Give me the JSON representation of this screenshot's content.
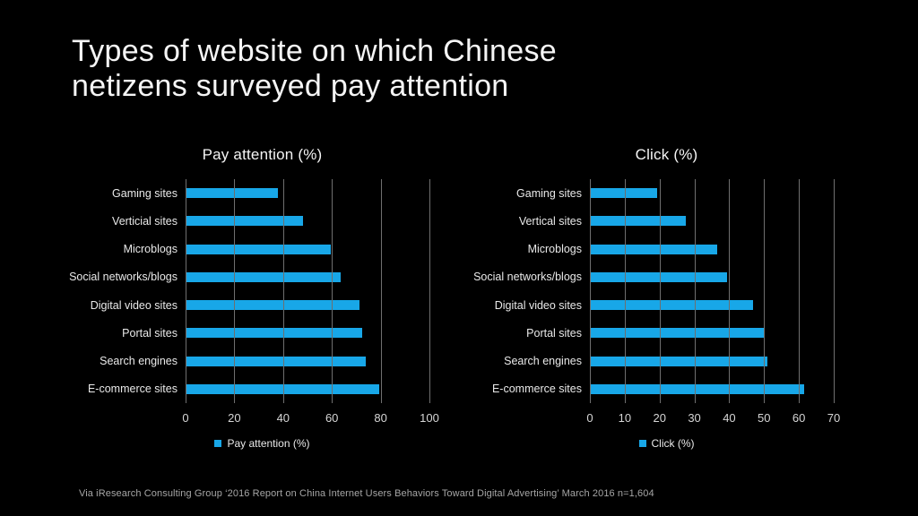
{
  "title": {
    "line1": "Types of website on which Chinese",
    "line2": "netizens surveyed pay attention"
  },
  "source": "Via iResearch Consulting Group ‘2016 Report on China Internet Users Behaviors Toward Digital Advertising’ March 2016 n=1,604",
  "colors": {
    "background": "#000000",
    "bar": "#18a7e8",
    "gridline": "#6f6f6f",
    "title_text": "#f5f5f5",
    "label_text": "#e9e9e9",
    "tick_text": "#d6d6d6",
    "footer_text": "#a6a6a6"
  },
  "chart_data": [
    {
      "type": "bar",
      "orientation": "horizontal",
      "title": "Pay attention (%)",
      "legend": "Pay attention (%)",
      "legend_position": "bottom",
      "grid": true,
      "categories": [
        "Gaming sites",
        "Verticial sites",
        "Microblogs",
        "Social networks/blogs",
        "Digital video sites",
        "Portal sites",
        "Search engines",
        "E-commerce sites"
      ],
      "values": [
        37.8,
        48.0,
        59.4,
        63.7,
        71.3,
        72.5,
        74.0,
        79.5
      ],
      "xlim": [
        0,
        100
      ],
      "ticks": [
        0,
        20,
        40,
        60,
        80,
        100
      ],
      "xlabel": "",
      "ylabel": ""
    },
    {
      "type": "bar",
      "orientation": "horizontal",
      "title": "Click (%)",
      "legend": "Click (%)",
      "legend_position": "bottom",
      "grid": true,
      "categories": [
        "Gaming sites",
        "Vertical sites",
        "Microblogs",
        "Social networks/blogs",
        "Digital video sites",
        "Portal sites",
        "Search engines",
        "E-commerce sites"
      ],
      "values": [
        19.3,
        27.5,
        36.6,
        39.4,
        46.9,
        50.2,
        50.9,
        61.5
      ],
      "xlim": [
        0,
        70
      ],
      "ticks": [
        0,
        10,
        20,
        30,
        40,
        50,
        60,
        70
      ],
      "xlabel": "",
      "ylabel": ""
    }
  ]
}
